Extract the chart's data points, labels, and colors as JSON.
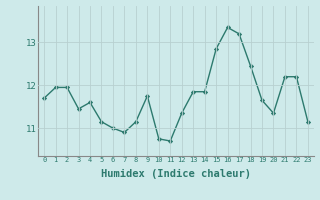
{
  "x": [
    0,
    1,
    2,
    3,
    4,
    5,
    6,
    7,
    8,
    9,
    10,
    11,
    12,
    13,
    14,
    15,
    16,
    17,
    18,
    19,
    20,
    21,
    22,
    23
  ],
  "y": [
    11.7,
    11.95,
    11.95,
    11.45,
    11.6,
    11.15,
    11.0,
    10.9,
    11.15,
    11.75,
    10.75,
    10.7,
    11.35,
    11.85,
    11.85,
    12.85,
    13.35,
    13.2,
    12.45,
    11.65,
    11.35,
    12.2,
    12.2,
    11.15
  ],
  "line_color": "#2d7a6e",
  "marker": "D",
  "marker_size": 2.2,
  "line_width": 1.0,
  "xlabel": "Humidex (Indice chaleur)",
  "xlabel_fontsize": 7.5,
  "yticks": [
    11,
    12,
    13
  ],
  "ylim": [
    10.35,
    13.85
  ],
  "xlim": [
    -0.5,
    23.5
  ],
  "xticks": [
    0,
    1,
    2,
    3,
    4,
    5,
    6,
    7,
    8,
    9,
    10,
    11,
    12,
    13,
    14,
    15,
    16,
    17,
    18,
    19,
    20,
    21,
    22,
    23
  ],
  "xtick_labels": [
    "0",
    "1",
    "2",
    "3",
    "4",
    "5",
    "6",
    "7",
    "8",
    "9",
    "10",
    "11",
    "12",
    "13",
    "14",
    "15",
    "16",
    "17",
    "18",
    "19",
    "20",
    "21",
    "22",
    "23"
  ],
  "bg_color": "#ceeaea",
  "grid_color": "#b8d0d0",
  "tick_color": "#2d7a6e"
}
